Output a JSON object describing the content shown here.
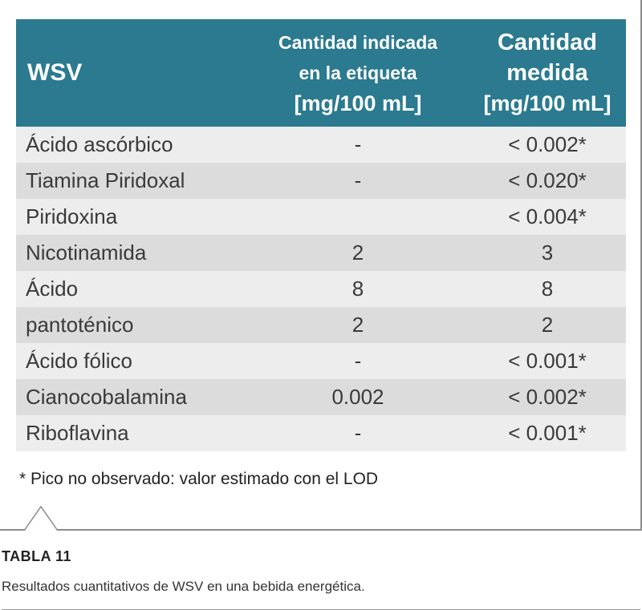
{
  "table": {
    "headers": {
      "name": "WSV",
      "indicated_line1": "Cantidad indicada",
      "indicated_line2": "en la etiqueta",
      "indicated_unit": "[mg/100 mL]",
      "measured_line1": "Cantidad",
      "measured_line2": "medida",
      "measured_unit": "[mg/100 mL]"
    },
    "rows": [
      {
        "name": "Ácido ascórbico",
        "indicated": "-",
        "measured": "< 0.002*"
      },
      {
        "name": "Tiamina Piridoxal",
        "indicated": "-",
        "measured": "< 0.020*"
      },
      {
        "name": "Piridoxina",
        "indicated": "",
        "measured": "< 0.004*"
      },
      {
        "name": "Nicotinamida",
        "indicated": "2",
        "measured": "3"
      },
      {
        "name": "Ácido",
        "indicated": "8",
        "measured": "8"
      },
      {
        "name": "pantoténico",
        "indicated": "2",
        "measured": "2"
      },
      {
        "name": "Ácido fólico",
        "indicated": "-",
        "measured": "< 0.001*"
      },
      {
        "name": "Cianocobalamina",
        "indicated": "0.002",
        "measured": "< 0.002*"
      },
      {
        "name": "Riboflavina",
        "indicated": "-",
        "measured": "< 0.001*"
      }
    ],
    "colors": {
      "header_bg": "#2b7a8f",
      "row_light": "#ededed",
      "row_dark": "#dcdcdc"
    }
  },
  "footnote": "* Pico no observado: valor estimado con el LOD",
  "caption": {
    "title": "TABLA 11",
    "text": "Resultados cuantitativos de WSV en una bebida energética."
  }
}
